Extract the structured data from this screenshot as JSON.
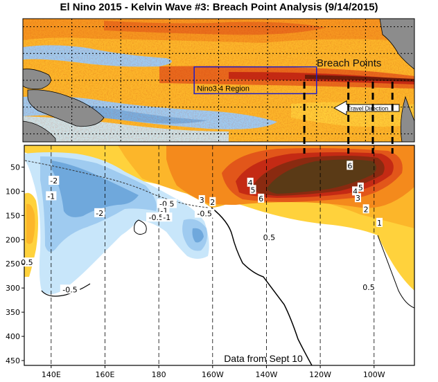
{
  "chart_data": [
    {
      "type": "heatmap",
      "panel": "sea-surface-temperature-anomaly-map",
      "title": "El Nino 2015 - Kelvin Wave #3: Breach Point Analysis (9/14/2015)",
      "x_range_lon": [
        120,
        280
      ],
      "y_range_lat": [
        -23,
        23
      ],
      "grid": "dotted",
      "annotations": {
        "breach_points": "Breach Points",
        "nino_box": "Nino3.4 Region",
        "travel_direction": "Travel Direction"
      },
      "nino34_box_lon": [
        190,
        240
      ],
      "nino34_box_lat": [
        -5,
        5
      ],
      "breach_point_lons": [
        235,
        253,
        263,
        271
      ]
    },
    {
      "type": "heatmap",
      "panel": "subsurface-temperature-anomaly-section",
      "xlabel": "",
      "ylabel": "",
      "xlim_lon": [
        130,
        275
      ],
      "ylim_depth": [
        460,
        5
      ],
      "x_ticks": [
        {
          "lon": 140,
          "label": "140E"
        },
        {
          "lon": 160,
          "label": "160E"
        },
        {
          "lon": 180,
          "label": "180"
        },
        {
          "lon": 200,
          "label": "160W"
        },
        {
          "lon": 220,
          "label": "140W"
        },
        {
          "lon": 240,
          "label": "120W"
        },
        {
          "lon": 260,
          "label": "100W"
        }
      ],
      "y_ticks": [
        50,
        100,
        150,
        200,
        250,
        300,
        350,
        400,
        450
      ],
      "contour_labels": [
        {
          "text": "-2",
          "lon": 141,
          "depth": 78
        },
        {
          "text": "-1",
          "lon": 140,
          "depth": 110
        },
        {
          "text": "-2",
          "lon": 158,
          "depth": 145
        },
        {
          "text": "-0.5",
          "lon": 183,
          "depth": 126
        },
        {
          "text": "-1",
          "lon": 182,
          "depth": 140
        },
        {
          "text": "-0.5",
          "lon": 179,
          "depth": 154
        },
        {
          "text": "-1",
          "lon": 183,
          "depth": 154
        },
        {
          "text": "-0.5",
          "lon": 197,
          "depth": 146
        },
        {
          "text": "3",
          "lon": 196,
          "depth": 118
        },
        {
          "text": "2",
          "lon": 200,
          "depth": 122
        },
        {
          "text": "4",
          "lon": 214,
          "depth": 82
        },
        {
          "text": "5",
          "lon": 215,
          "depth": 97
        },
        {
          "text": "6",
          "lon": 218,
          "depth": 115
        },
        {
          "text": "6",
          "lon": 251,
          "depth": 47
        },
        {
          "text": "5",
          "lon": 255,
          "depth": 92
        },
        {
          "text": "4",
          "lon": 253,
          "depth": 100
        },
        {
          "text": "3",
          "lon": 254,
          "depth": 114
        },
        {
          "text": "2",
          "lon": 257,
          "depth": 137
        },
        {
          "text": "1",
          "lon": 262,
          "depth": 165
        },
        {
          "text": "0.5",
          "lon": 221,
          "depth": 195
        },
        {
          "text": "0.5",
          "lon": 131,
          "depth": 247
        },
        {
          "text": "-0.5",
          "lon": 147,
          "depth": 303
        },
        {
          "text": "0.5",
          "lon": 258,
          "depth": 298
        }
      ],
      "caption": "Data from Sept 10"
    }
  ],
  "colors": {
    "deep_blue": "#6fa8dc",
    "mid_blue": "#9fcbf0",
    "light_blue": "#c8e6fa",
    "neutral": "#ffffff",
    "yellow": "#ffd23c",
    "light_orange": "#fcb62a",
    "orange": "#f48a1c",
    "dark_orange": "#e2561a",
    "red": "#c42a14",
    "dark_red": "#8a2a10",
    "brown": "#5a3a16",
    "land": "#8c8c8c",
    "nino_box": "#1c1cc8"
  }
}
